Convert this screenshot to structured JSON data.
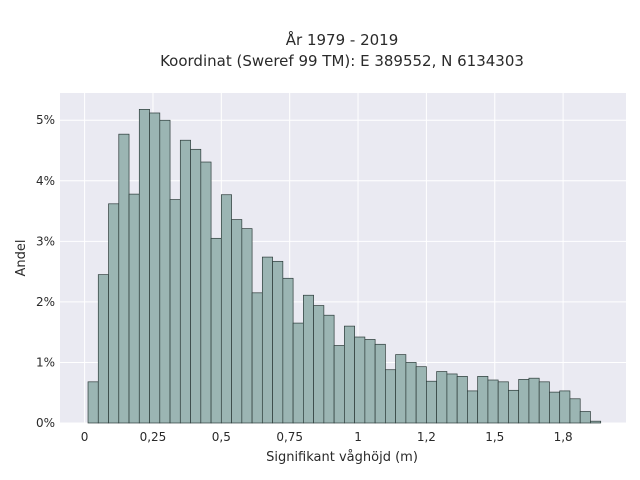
{
  "chart_data": {
    "type": "bar",
    "title": "År 1979 - 2019",
    "subtitle": "Koordinat (Sweref 99 TM): E 389552, N 6134303",
    "xlabel": "Signifikant våghöjd (m)",
    "ylabel": "Andel",
    "xlim": [
      -0.09,
      1.98
    ],
    "ylim": [
      0,
      5.45
    ],
    "grid": true,
    "x_ticks": [
      {
        "value": 0,
        "label": "0"
      },
      {
        "value": 0.25,
        "label": "0,25"
      },
      {
        "value": 0.5,
        "label": "0,5"
      },
      {
        "value": 0.75,
        "label": "0,75"
      },
      {
        "value": 1.0,
        "label": "1"
      },
      {
        "value": 1.25,
        "label": "1,2"
      },
      {
        "value": 1.5,
        "label": "1,5"
      },
      {
        "value": 1.75,
        "label": "1,8"
      }
    ],
    "y_ticks": [
      {
        "value": 0,
        "label": "0%"
      },
      {
        "value": 1,
        "label": "1%"
      },
      {
        "value": 2,
        "label": "2%"
      },
      {
        "value": 3,
        "label": "3%"
      },
      {
        "value": 4,
        "label": "4%"
      },
      {
        "value": 5,
        "label": "5%"
      }
    ],
    "bin_start": 0.0125,
    "bin_width": 0.0375,
    "values": [
      0.68,
      2.45,
      3.62,
      4.77,
      3.78,
      5.18,
      5.12,
      5.0,
      3.69,
      4.67,
      4.52,
      4.31,
      3.05,
      3.77,
      3.36,
      3.21,
      2.15,
      2.74,
      2.67,
      2.39,
      1.65,
      2.11,
      1.94,
      1.78,
      1.28,
      1.6,
      1.42,
      1.38,
      1.3,
      0.88,
      1.13,
      1.0,
      0.93,
      0.69,
      0.85,
      0.81,
      0.77,
      0.53,
      0.77,
      0.71,
      0.68,
      0.54,
      0.72,
      0.74,
      0.68,
      0.51,
      0.53,
      0.4,
      0.19,
      0.03
    ],
    "colors": {
      "bar_fill": "#9bb5b3",
      "bar_edge": "#2c3b39",
      "plot_bg": "#eaeaf2",
      "grid": "#ffffff"
    }
  }
}
